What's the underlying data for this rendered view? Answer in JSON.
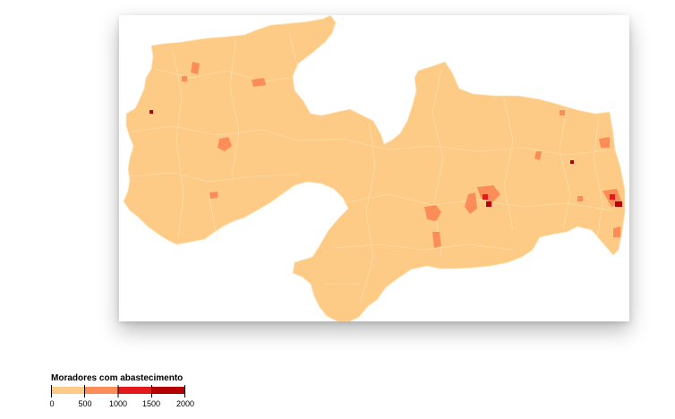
{
  "map": {
    "region_fill": "#fdcb86",
    "border_color": "#fde6bf",
    "frame_background": "#ffffff"
  },
  "legend": {
    "title": "Moradores com abastecimento",
    "ticks": [
      "0",
      "500",
      "1000",
      "1500",
      "2000"
    ],
    "bins": [
      {
        "from": 0,
        "to": 500,
        "color": "#fdcb86"
      },
      {
        "from": 500,
        "to": 1000,
        "color": "#fc8d59"
      },
      {
        "from": 1000,
        "to": 1500,
        "color": "#e31a1c"
      },
      {
        "from": 1500,
        "to": 2000,
        "color": "#b30000"
      }
    ]
  }
}
